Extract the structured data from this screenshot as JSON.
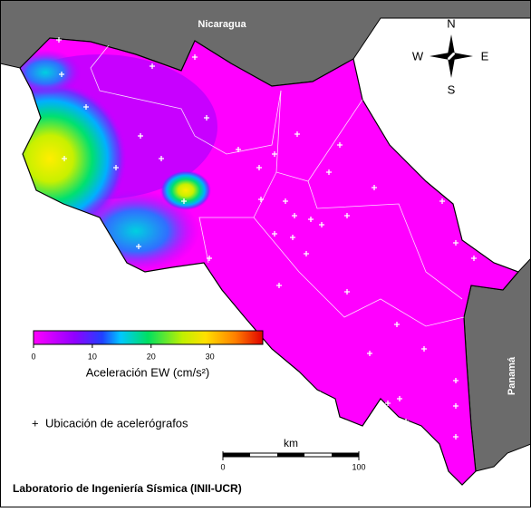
{
  "map": {
    "labels": {
      "north_country": "Nicaragua",
      "south_country": "Panamá"
    },
    "compass": {
      "n": "N",
      "s": "S",
      "e": "E",
      "w": "W"
    },
    "colorbar": {
      "label": "Aceleración EW (cm/s²)",
      "lim": [
        0,
        39
      ],
      "ticks": [
        0,
        10,
        20,
        30
      ]
    },
    "legend": {
      "marker": "+",
      "label": "Ubicación de acelerógrafos"
    },
    "scale": {
      "unit": "km",
      "lim": [
        0,
        100
      ],
      "ticks": [
        0,
        100
      ]
    },
    "footer": "Laboratorio de Ingeniería Sísmica (INII-UCR)"
  }
}
